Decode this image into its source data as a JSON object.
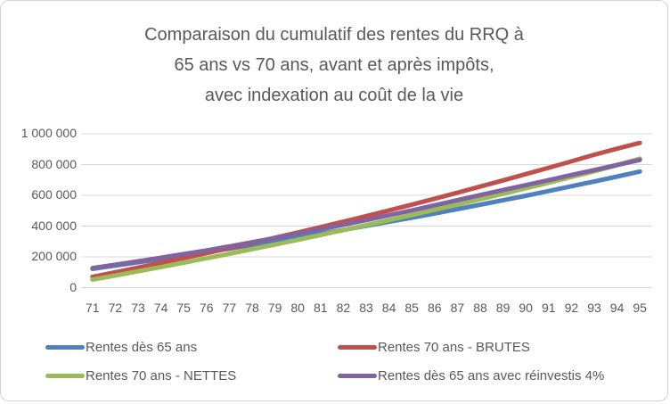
{
  "chart_data": {
    "type": "line",
    "title": "Comparaison du cumulatif des rentes du RRQ à 65 ans vs 70 ans, avant et après impôts, avec indexation au coût de la vie",
    "title_lines": [
      "Comparaison du cumulatif des rentes du RRQ à",
      "65 ans vs 70 ans, avant et après impôts,",
      "avec indexation au coût de la vie"
    ],
    "categories": [
      "71",
      "72",
      "73",
      "74",
      "75",
      "76",
      "77",
      "78",
      "79",
      "80",
      "81",
      "82",
      "83",
      "84",
      "85",
      "86",
      "87",
      "88",
      "89",
      "90",
      "91",
      "92",
      "93",
      "94",
      "95"
    ],
    "ylim": [
      0,
      1000000
    ],
    "y_ticks": {
      "values": [
        0,
        200000,
        400000,
        600000,
        800000,
        1000000
      ],
      "labels": [
        "0",
        "200 000",
        "400 000",
        "600 000",
        "800 000",
        "1 000 000"
      ]
    },
    "grid": "horizontal",
    "legend_position": "bottom",
    "text_color": "#595959",
    "gridline_color": "#d9d9d9",
    "series": [
      {
        "name": "Rentes dès 65 ans",
        "color": "#4F81BD",
        "values": [
          122000,
          143000,
          164000,
          186000,
          208000,
          230000,
          253000,
          277000,
          301000,
          325000,
          350000,
          375000,
          401000,
          428000,
          454000,
          482000,
          510000,
          539000,
          568000,
          597000,
          628000,
          659000,
          690000,
          722000,
          755000
        ]
      },
      {
        "name": "Rentes 70 ans - BRUTES",
        "color": "#C0504D",
        "values": [
          70000,
          100000,
          130000,
          161000,
          192000,
          224000,
          257000,
          290000,
          324000,
          358000,
          393000,
          429000,
          465000,
          502000,
          540000,
          578000,
          617000,
          657000,
          697000,
          738000,
          779000,
          821000,
          864000,
          903000,
          941000
        ]
      },
      {
        "name": "Rentes 70 ans - NETTES",
        "color": "#9BBB59",
        "values": [
          52000,
          79000,
          106000,
          134000,
          162000,
          191000,
          220000,
          250000,
          280000,
          311000,
          342000,
          374000,
          406000,
          439000,
          472000,
          506000,
          540000,
          575000,
          610000,
          646000,
          682000,
          719000,
          756000,
          796000,
          838000
        ]
      },
      {
        "name": "Rentes dès 65 ans avec réinvestis 4%",
        "color": "#8064A2",
        "values": [
          127000,
          149000,
          171000,
          194000,
          218000,
          242000,
          268000,
          295000,
          322000,
          350000,
          379000,
          408000,
          439000,
          471000,
          502000,
          535000,
          568000,
          602000,
          634000,
          666000,
          699000,
          732000,
          764000,
          797000,
          830000
        ]
      }
    ]
  }
}
